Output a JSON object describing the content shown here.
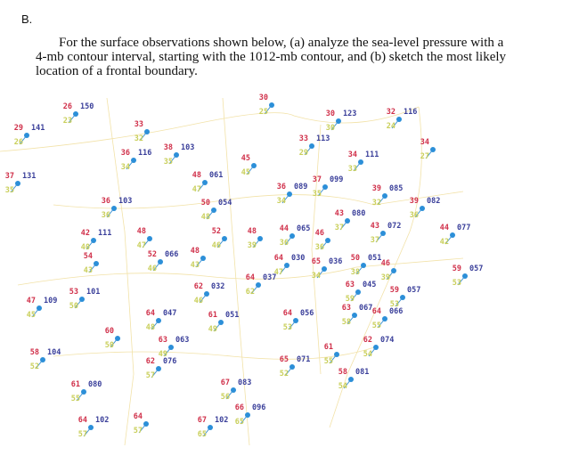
{
  "header": {
    "label": "B.",
    "question_lines": [
      "For the surface observations shown below, (a) analyze the sea-level pressure with a",
      "4-mb contour interval, starting with the 1012-mb contour, and (b) sketch the most likely",
      "location of a frontal boundary."
    ]
  },
  "stations": [
    {
      "temperature": "26",
      "pressure": "150",
      "dewpoint": "23"
    },
    {
      "temperature": "29",
      "pressure": "141",
      "dewpoint": "26"
    },
    {
      "temperature": "33",
      "dewpoint": "32"
    },
    {
      "temperature": "36",
      "pressure": "116",
      "dewpoint": "34"
    },
    {
      "temperature": "38",
      "pressure": "103",
      "dewpoint": "35"
    },
    {
      "temperature": "37",
      "pressure": "131",
      "dewpoint": "35"
    },
    {
      "temperature": "36",
      "pressure": "103",
      "dewpoint": "36"
    },
    {
      "temperature": "48",
      "pressure": "061",
      "dewpoint": "47"
    },
    {
      "temperature": "50",
      "pressure": "054",
      "dewpoint": "48"
    },
    {
      "temperature": "45",
      "dewpoint": "45"
    },
    {
      "temperature": "30",
      "dewpoint": "25"
    },
    {
      "temperature": "30",
      "pressure": "123",
      "dewpoint": "30"
    },
    {
      "temperature": "32",
      "pressure": "116",
      "dewpoint": "24"
    },
    {
      "temperature": "33",
      "pressure": "113",
      "dewpoint": "29"
    },
    {
      "temperature": "34",
      "pressure": "111",
      "dewpoint": "33"
    },
    {
      "temperature": "34",
      "dewpoint": "27"
    },
    {
      "temperature": "36",
      "pressure": "089",
      "dewpoint": "34"
    },
    {
      "temperature": "37",
      "pressure": "099",
      "dewpoint": "35"
    },
    {
      "temperature": "39",
      "pressure": "085",
      "dewpoint": "32"
    },
    {
      "temperature": "39",
      "pressure": "082",
      "dewpoint": "36"
    },
    {
      "temperature": "43",
      "pressure": "080",
      "dewpoint": "37"
    },
    {
      "temperature": "42",
      "pressure": "111",
      "dewpoint": "40"
    },
    {
      "temperature": "48",
      "dewpoint": "47"
    },
    {
      "temperature": "52",
      "dewpoint": "46"
    },
    {
      "temperature": "48",
      "dewpoint": "39"
    },
    {
      "temperature": "44",
      "pressure": "065",
      "dewpoint": "36"
    },
    {
      "temperature": "46",
      "dewpoint": "36"
    },
    {
      "temperature": "43",
      "pressure": "072",
      "dewpoint": "37"
    },
    {
      "temperature": "44",
      "pressure": "077",
      "dewpoint": "42"
    },
    {
      "temperature": "54",
      "dewpoint": "43"
    },
    {
      "temperature": "52",
      "pressure": "066",
      "dewpoint": "46"
    },
    {
      "temperature": "48",
      "dewpoint": "43"
    },
    {
      "temperature": "64",
      "pressure": "030",
      "dewpoint": "47"
    },
    {
      "temperature": "65",
      "pressure": "036",
      "dewpoint": "34"
    },
    {
      "temperature": "50",
      "pressure": "051",
      "dewpoint": "38"
    },
    {
      "temperature": "46",
      "dewpoint": "39"
    },
    {
      "temperature": "59",
      "pressure": "057",
      "dewpoint": "53"
    },
    {
      "temperature": "64",
      "pressure": "037",
      "dewpoint": "62"
    },
    {
      "temperature": "62",
      "pressure": "032",
      "dewpoint": "46"
    },
    {
      "temperature": "53",
      "pressure": "101",
      "dewpoint": "50"
    },
    {
      "temperature": "47",
      "pressure": "109",
      "dewpoint": "45"
    },
    {
      "temperature": "63",
      "pressure": "045",
      "dewpoint": "59"
    },
    {
      "temperature": "59",
      "pressure": "057",
      "dewpoint": "53"
    },
    {
      "temperature": "63",
      "pressure": "067",
      "dewpoint": "58"
    },
    {
      "temperature": "64",
      "pressure": "066",
      "dewpoint": "55"
    },
    {
      "temperature": "64",
      "pressure": "047",
      "dewpoint": "48"
    },
    {
      "temperature": "61",
      "pressure": "051",
      "dewpoint": "49"
    },
    {
      "temperature": "64",
      "pressure": "056",
      "dewpoint": "53"
    },
    {
      "temperature": "60",
      "dewpoint": "50"
    },
    {
      "temperature": "63",
      "pressure": "063",
      "dewpoint": "49"
    },
    {
      "temperature": "62",
      "pressure": "074",
      "dewpoint": "54"
    },
    {
      "temperature": "61",
      "dewpoint": "55"
    },
    {
      "temperature": "58",
      "pressure": "104",
      "dewpoint": "52"
    },
    {
      "temperature": "62",
      "pressure": "076",
      "dewpoint": "57"
    },
    {
      "temperature": "65",
      "pressure": "071",
      "dewpoint": "52"
    },
    {
      "temperature": "58",
      "pressure": "081",
      "dewpoint": "54"
    },
    {
      "temperature": "61",
      "pressure": "080",
      "dewpoint": "55"
    },
    {
      "temperature": "67",
      "pressure": "083",
      "dewpoint": "56"
    },
    {
      "temperature": "66",
      "pressure": "096",
      "dewpoint": "65"
    },
    {
      "temperature": "64",
      "pressure": "102",
      "dewpoint": "57"
    },
    {
      "temperature": "64",
      "dewpoint": "57"
    },
    {
      "temperature": "67",
      "pressure": "102",
      "dewpoint": "65"
    }
  ]
}
